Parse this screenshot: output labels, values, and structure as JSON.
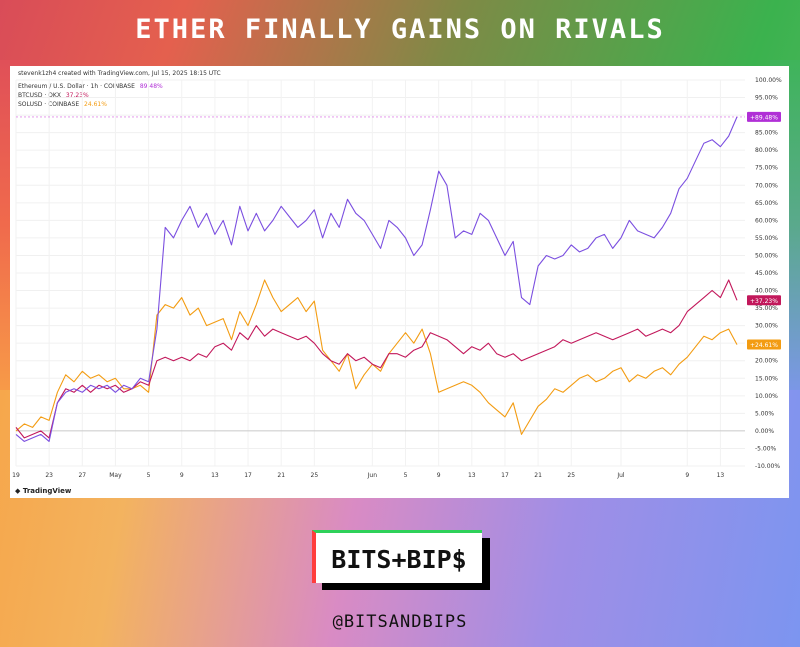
{
  "header": {
    "title": "ETHER FINALLY GAINS ON RIVALS"
  },
  "chart_panel": {
    "meta": "stevenk1zh4 created with TradingView.com, Jul 15, 2025 18:15 UTC",
    "brand": "TradingView",
    "legend": [
      {
        "label": "Ethereum / U.S. Dollar · 1h · COINBASE",
        "value": "89.48%",
        "color": "#b02fd6"
      },
      {
        "label": "BTCUSD · OKX",
        "value": "37.23%",
        "color": "#c2185b"
      },
      {
        "label": "SOLUSD · COINBASE",
        "value": "24.61%",
        "color": "#f39c12"
      }
    ]
  },
  "branding": {
    "logo": "BITS+BIP$",
    "handle": "@BITSANDBIPS"
  },
  "chart_data": {
    "type": "line",
    "title": "",
    "xlabel": "",
    "ylabel": "",
    "ylim": [
      -10,
      100
    ],
    "yticks": [
      "100.00%",
      "95.00%",
      "90.00%",
      "85.00%",
      "80.00%",
      "75.00%",
      "70.00%",
      "65.00%",
      "60.00%",
      "55.00%",
      "50.00%",
      "45.00%",
      "40.00%",
      "35.00%",
      "30.00%",
      "25.00%",
      "20.00%",
      "15.00%",
      "10.00%",
      "5.00%",
      "0.00%",
      "-5.00%",
      "-10.00%"
    ],
    "ytick_values": [
      100,
      95,
      90,
      85,
      80,
      75,
      70,
      65,
      60,
      55,
      50,
      45,
      40,
      35,
      30,
      25,
      20,
      15,
      10,
      5,
      0,
      -5,
      -10
    ],
    "xticks": [
      "19",
      "23",
      "27",
      "May",
      "5",
      "9",
      "13",
      "17",
      "21",
      "25",
      "Jun",
      "5",
      "9",
      "13",
      "17",
      "21",
      "25",
      "Jul",
      "9",
      "13"
    ],
    "xtick_days": [
      0,
      4,
      8,
      12,
      16,
      20,
      24,
      28,
      32,
      36,
      43,
      47,
      51,
      55,
      59,
      63,
      67,
      73,
      81,
      85
    ],
    "x_days_end": 87,
    "series": [
      {
        "name": "Ethereum / U.S. Dollar",
        "color": "#7b4fe0",
        "last_label": "+89.48%",
        "last_value": 89.48,
        "points": [
          [
            0,
            -1
          ],
          [
            1,
            -3
          ],
          [
            2,
            -2
          ],
          [
            3,
            -1
          ],
          [
            4,
            -3
          ],
          [
            5,
            8
          ],
          [
            6,
            11
          ],
          [
            7,
            12
          ],
          [
            8,
            11
          ],
          [
            9,
            13
          ],
          [
            10,
            12
          ],
          [
            11,
            13
          ],
          [
            12,
            11
          ],
          [
            13,
            13
          ],
          [
            14,
            12
          ],
          [
            15,
            15
          ],
          [
            16,
            14
          ],
          [
            17,
            29
          ],
          [
            18,
            58
          ],
          [
            19,
            55
          ],
          [
            20,
            60
          ],
          [
            21,
            64
          ],
          [
            22,
            58
          ],
          [
            23,
            62
          ],
          [
            24,
            56
          ],
          [
            25,
            60
          ],
          [
            26,
            53
          ],
          [
            27,
            64
          ],
          [
            28,
            57
          ],
          [
            29,
            62
          ],
          [
            30,
            57
          ],
          [
            31,
            60
          ],
          [
            32,
            64
          ],
          [
            33,
            61
          ],
          [
            34,
            58
          ],
          [
            35,
            60
          ],
          [
            36,
            63
          ],
          [
            37,
            55
          ],
          [
            38,
            62
          ],
          [
            39,
            58
          ],
          [
            40,
            66
          ],
          [
            41,
            62
          ],
          [
            42,
            60
          ],
          [
            43,
            56
          ],
          [
            44,
            52
          ],
          [
            45,
            60
          ],
          [
            46,
            58
          ],
          [
            47,
            55
          ],
          [
            48,
            50
          ],
          [
            49,
            53
          ],
          [
            50,
            63
          ],
          [
            51,
            74
          ],
          [
            52,
            70
          ],
          [
            53,
            55
          ],
          [
            54,
            57
          ],
          [
            55,
            56
          ],
          [
            56,
            62
          ],
          [
            57,
            60
          ],
          [
            58,
            55
          ],
          [
            59,
            50
          ],
          [
            60,
            54
          ],
          [
            61,
            38
          ],
          [
            62,
            36
          ],
          [
            63,
            47
          ],
          [
            64,
            50
          ],
          [
            65,
            49
          ],
          [
            66,
            50
          ],
          [
            67,
            53
          ],
          [
            68,
            51
          ],
          [
            69,
            52
          ],
          [
            70,
            55
          ],
          [
            71,
            56
          ],
          [
            72,
            52
          ],
          [
            73,
            55
          ],
          [
            74,
            60
          ],
          [
            75,
            57
          ],
          [
            76,
            56
          ],
          [
            77,
            55
          ],
          [
            78,
            58
          ],
          [
            79,
            62
          ],
          [
            80,
            69
          ],
          [
            81,
            72
          ],
          [
            82,
            77
          ],
          [
            83,
            82
          ],
          [
            84,
            83
          ],
          [
            85,
            81
          ],
          [
            86,
            84
          ],
          [
            87,
            89.48
          ]
        ]
      },
      {
        "name": "BTCUSD",
        "color": "#c2185b",
        "last_label": "+37.23%",
        "last_value": 37.23,
        "points": [
          [
            0,
            1
          ],
          [
            1,
            -2
          ],
          [
            2,
            -1
          ],
          [
            3,
            0
          ],
          [
            4,
            -2
          ],
          [
            5,
            8
          ],
          [
            6,
            12
          ],
          [
            7,
            11
          ],
          [
            8,
            13
          ],
          [
            9,
            11
          ],
          [
            10,
            13
          ],
          [
            11,
            12
          ],
          [
            12,
            13
          ],
          [
            13,
            11
          ],
          [
            14,
            12
          ],
          [
            15,
            14
          ],
          [
            16,
            13
          ],
          [
            17,
            20
          ],
          [
            18,
            21
          ],
          [
            19,
            20
          ],
          [
            20,
            21
          ],
          [
            21,
            20
          ],
          [
            22,
            22
          ],
          [
            23,
            21
          ],
          [
            24,
            24
          ],
          [
            25,
            25
          ],
          [
            26,
            23
          ],
          [
            27,
            28
          ],
          [
            28,
            26
          ],
          [
            29,
            30
          ],
          [
            30,
            27
          ],
          [
            31,
            29
          ],
          [
            32,
            28
          ],
          [
            33,
            27
          ],
          [
            34,
            26
          ],
          [
            35,
            27
          ],
          [
            36,
            25
          ],
          [
            37,
            22
          ],
          [
            38,
            20
          ],
          [
            39,
            19
          ],
          [
            40,
            22
          ],
          [
            41,
            20
          ],
          [
            42,
            21
          ],
          [
            43,
            19
          ],
          [
            44,
            18
          ],
          [
            45,
            22
          ],
          [
            46,
            22
          ],
          [
            47,
            21
          ],
          [
            48,
            23
          ],
          [
            49,
            24
          ],
          [
            50,
            28
          ],
          [
            51,
            27
          ],
          [
            52,
            26
          ],
          [
            53,
            24
          ],
          [
            54,
            22
          ],
          [
            55,
            24
          ],
          [
            56,
            23
          ],
          [
            57,
            25
          ],
          [
            58,
            22
          ],
          [
            59,
            21
          ],
          [
            60,
            22
          ],
          [
            61,
            20
          ],
          [
            62,
            21
          ],
          [
            63,
            22
          ],
          [
            64,
            23
          ],
          [
            65,
            24
          ],
          [
            66,
            26
          ],
          [
            67,
            25
          ],
          [
            68,
            26
          ],
          [
            69,
            27
          ],
          [
            70,
            28
          ],
          [
            71,
            27
          ],
          [
            72,
            26
          ],
          [
            73,
            27
          ],
          [
            74,
            28
          ],
          [
            75,
            29
          ],
          [
            76,
            27
          ],
          [
            77,
            28
          ],
          [
            78,
            29
          ],
          [
            79,
            28
          ],
          [
            80,
            30
          ],
          [
            81,
            34
          ],
          [
            82,
            36
          ],
          [
            83,
            38
          ],
          [
            84,
            40
          ],
          [
            85,
            38
          ],
          [
            86,
            43
          ],
          [
            87,
            37.23
          ]
        ]
      },
      {
        "name": "SOLUSD",
        "color": "#f39c12",
        "last_label": "+24.61%",
        "last_value": 24.61,
        "points": [
          [
            0,
            0
          ],
          [
            1,
            2
          ],
          [
            2,
            1
          ],
          [
            3,
            4
          ],
          [
            4,
            3
          ],
          [
            5,
            11
          ],
          [
            6,
            16
          ],
          [
            7,
            14
          ],
          [
            8,
            17
          ],
          [
            9,
            15
          ],
          [
            10,
            16
          ],
          [
            11,
            14
          ],
          [
            12,
            15
          ],
          [
            13,
            12
          ],
          [
            14,
            12
          ],
          [
            15,
            13
          ],
          [
            16,
            11
          ],
          [
            17,
            33
          ],
          [
            18,
            36
          ],
          [
            19,
            35
          ],
          [
            20,
            38
          ],
          [
            21,
            33
          ],
          [
            22,
            35
          ],
          [
            23,
            30
          ],
          [
            24,
            31
          ],
          [
            25,
            32
          ],
          [
            26,
            26
          ],
          [
            27,
            34
          ],
          [
            28,
            30
          ],
          [
            29,
            36
          ],
          [
            30,
            43
          ],
          [
            31,
            38
          ],
          [
            32,
            34
          ],
          [
            33,
            36
          ],
          [
            34,
            38
          ],
          [
            35,
            34
          ],
          [
            36,
            37
          ],
          [
            37,
            23
          ],
          [
            38,
            20
          ],
          [
            39,
            17
          ],
          [
            40,
            22
          ],
          [
            41,
            12
          ],
          [
            42,
            16
          ],
          [
            43,
            19
          ],
          [
            44,
            17
          ],
          [
            45,
            22
          ],
          [
            46,
            25
          ],
          [
            47,
            28
          ],
          [
            48,
            25
          ],
          [
            49,
            29
          ],
          [
            50,
            22
          ],
          [
            51,
            11
          ],
          [
            52,
            12
          ],
          [
            53,
            13
          ],
          [
            54,
            14
          ],
          [
            55,
            13
          ],
          [
            56,
            11
          ],
          [
            57,
            8
          ],
          [
            58,
            6
          ],
          [
            59,
            4
          ],
          [
            60,
            8
          ],
          [
            61,
            -1
          ],
          [
            62,
            3
          ],
          [
            63,
            7
          ],
          [
            64,
            9
          ],
          [
            65,
            12
          ],
          [
            66,
            11
          ],
          [
            67,
            13
          ],
          [
            68,
            15
          ],
          [
            69,
            16
          ],
          [
            70,
            14
          ],
          [
            71,
            15
          ],
          [
            72,
            17
          ],
          [
            73,
            18
          ],
          [
            74,
            14
          ],
          [
            75,
            16
          ],
          [
            76,
            15
          ],
          [
            77,
            17
          ],
          [
            78,
            18
          ],
          [
            79,
            16
          ],
          [
            80,
            19
          ],
          [
            81,
            21
          ],
          [
            82,
            24
          ],
          [
            83,
            27
          ],
          [
            84,
            26
          ],
          [
            85,
            28
          ],
          [
            86,
            29
          ],
          [
            87,
            24.61
          ]
        ]
      }
    ],
    "hline_value": 89.48,
    "baseline_value": 0,
    "grid": true,
    "legend_position": "top-left"
  }
}
